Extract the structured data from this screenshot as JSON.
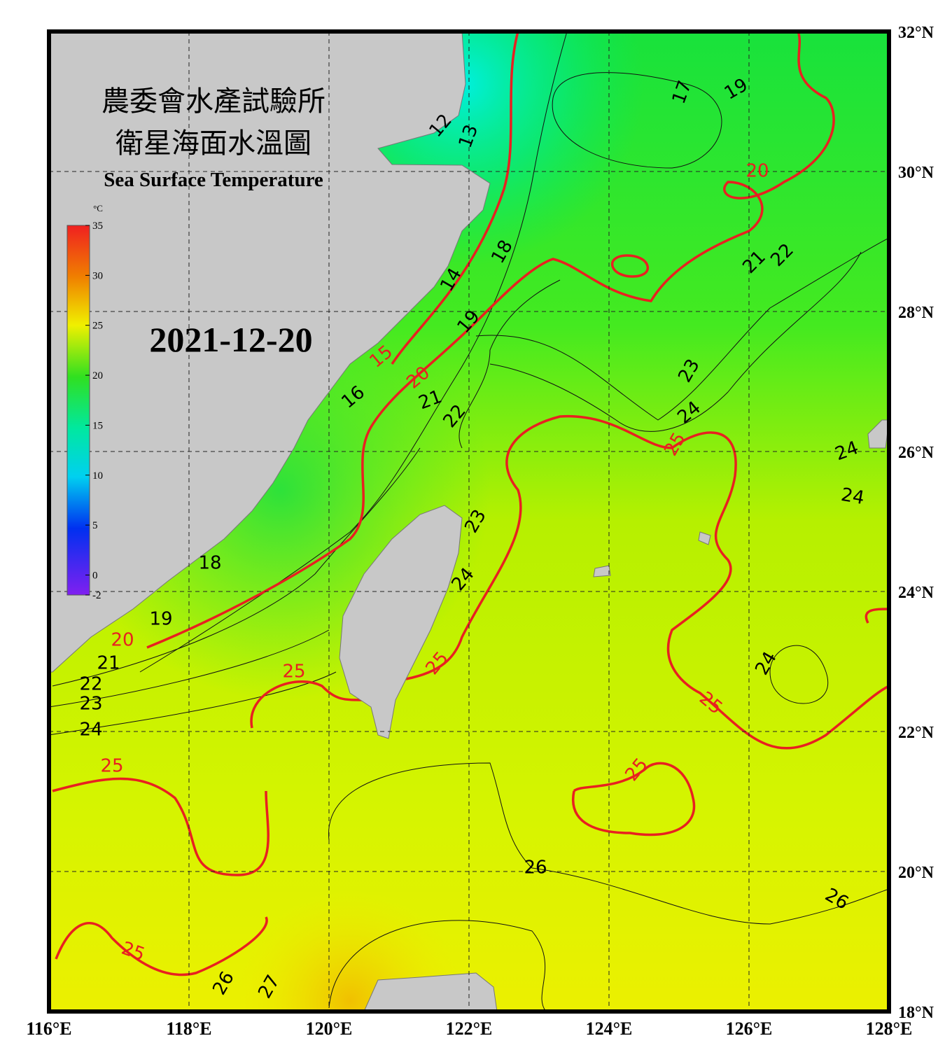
{
  "map": {
    "title_zh_1": "農委會水產試驗所",
    "title_zh_2": "衛星海面水溫圖",
    "title_en": "Sea Surface Temperature",
    "date": "2021-12-20",
    "xlim": [
      116,
      128
    ],
    "ylim": [
      18,
      32
    ],
    "xticks": [
      {
        "value": 116,
        "label": "116°E"
      },
      {
        "value": 118,
        "label": "118°E"
      },
      {
        "value": 120,
        "label": "120°E"
      },
      {
        "value": 122,
        "label": "122°E"
      },
      {
        "value": 124,
        "label": "124°E"
      },
      {
        "value": 126,
        "label": "126°E"
      },
      {
        "value": 128,
        "label": "128°E"
      }
    ],
    "yticks": [
      {
        "value": 32,
        "label": "32°N"
      },
      {
        "value": 30,
        "label": "30°N"
      },
      {
        "value": 28,
        "label": "28°N"
      },
      {
        "value": 26,
        "label": "26°N"
      },
      {
        "value": 24,
        "label": "24°N"
      },
      {
        "value": 22,
        "label": "22°N"
      },
      {
        "value": 20,
        "label": "20°N"
      },
      {
        "value": 18,
        "label": "18°N"
      }
    ],
    "grid": true,
    "colorbar": {
      "unit": "°C",
      "range": [
        -2,
        35
      ],
      "ticks": [
        35,
        30,
        25,
        20,
        15,
        10,
        5,
        0,
        -2
      ]
    },
    "contour_labels": [
      12,
      13,
      17,
      19,
      20,
      18,
      14,
      21,
      22,
      19,
      15,
      20,
      21,
      22,
      16,
      23,
      24,
      25,
      24,
      24,
      23,
      18,
      24,
      19,
      20,
      21,
      22,
      23,
      24,
      25,
      25,
      24,
      25,
      25,
      25,
      26,
      26,
      25,
      26,
      27
    ]
  }
}
